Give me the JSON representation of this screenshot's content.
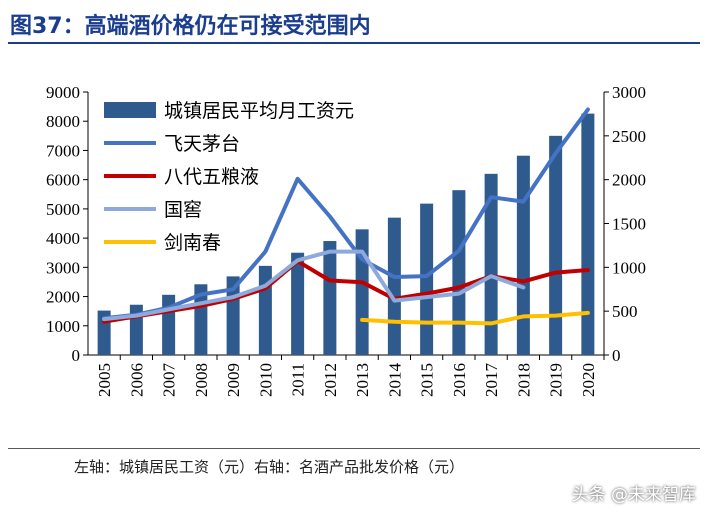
{
  "figure": {
    "title": "图37：高端酒价格仍在可接受范围内",
    "axis_note": "左轴：城镇居民工资（元）右轴：名酒产品批发价格（元）",
    "watermark": "头条 @未来智库"
  },
  "chart_data": {
    "type": "bar",
    "categories": [
      "2005",
      "2006",
      "2007",
      "2008",
      "2009",
      "2010",
      "2011",
      "2012",
      "2013",
      "2014",
      "2015",
      "2016",
      "2017",
      "2018",
      "2019",
      "2020"
    ],
    "y_left": {
      "min": 0,
      "max": 9000,
      "ticks": [
        0,
        1000,
        2000,
        3000,
        4000,
        5000,
        6000,
        7000,
        8000,
        9000
      ]
    },
    "y_right": {
      "min": 0,
      "max": 3000,
      "ticks": [
        0,
        500,
        1000,
        1500,
        2000,
        2500,
        3000
      ]
    },
    "legend_position": "top-left",
    "grid": false,
    "bar_series": {
      "name": "城镇居民平均月工资元",
      "axis": "left",
      "color": "#2e5a8e",
      "values": [
        1520,
        1720,
        2060,
        2420,
        2690,
        3050,
        3500,
        3900,
        4300,
        4700,
        5180,
        5640,
        6200,
        6820,
        7500,
        8260
      ]
    },
    "line_series": [
      {
        "name": "飞天茅台",
        "axis": "right",
        "color": "#4472c4",
        "values": [
          420,
          460,
          540,
          690,
          750,
          1180,
          2010,
          1580,
          1090,
          890,
          900,
          1190,
          1800,
          1750,
          2300,
          2800
        ]
      },
      {
        "name": "八代五粮液",
        "axis": "right",
        "color": "#c00000",
        "values": [
          380,
          440,
          500,
          560,
          640,
          760,
          1070,
          850,
          830,
          640,
          700,
          770,
          900,
          840,
          940,
          970
        ]
      },
      {
        "name": "国窖",
        "axis": "right",
        "color": "#8ea9db",
        "values": [
          410,
          450,
          520,
          590,
          660,
          790,
          1080,
          1180,
          1180,
          620,
          660,
          700,
          900,
          770,
          null,
          null
        ]
      },
      {
        "name": "剑南春",
        "axis": "right",
        "color": "#ffc000",
        "values": [
          null,
          null,
          null,
          null,
          null,
          null,
          null,
          null,
          400,
          380,
          370,
          370,
          360,
          440,
          450,
          480
        ]
      }
    ]
  }
}
